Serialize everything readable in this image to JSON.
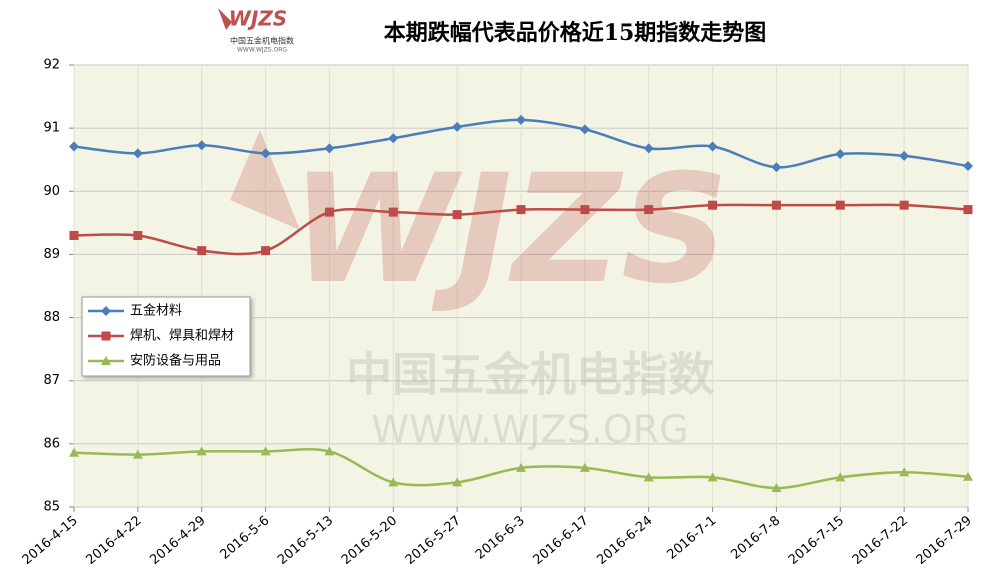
{
  "chart_data": {
    "type": "line",
    "title": "本期跌幅代表品价格近15期指数走势图",
    "logo": {
      "mark": "WJZS",
      "caption": "中国五金机电指数",
      "url": "WWW.WJZS.ORG"
    },
    "watermark": {
      "mark": "WJZS",
      "caption": "中国五金机电指数",
      "url": "WWW.WJZS.ORG"
    },
    "categories": [
      "2016-4-15",
      "2016-4-22",
      "2016-4-29",
      "2016-5-6",
      "2016-5-13",
      "2016-5-20",
      "2016-5-27",
      "2016-6-3",
      "2016-6-17",
      "2016-6-24",
      "2016-7-1",
      "2016-7-8",
      "2016-7-15",
      "2016-7-22",
      "2016-7-29"
    ],
    "series": [
      {
        "name": "五金材料",
        "color": "#4a7ebb",
        "marker": "diamond",
        "values": [
          90.71,
          90.6,
          90.73,
          90.6,
          90.68,
          90.84,
          91.02,
          91.13,
          90.98,
          90.68,
          90.71,
          90.38,
          90.59,
          90.56,
          90.4
        ]
      },
      {
        "name": "焊机、焊具和焊材",
        "color": "#be4b48",
        "marker": "square",
        "values": [
          89.3,
          89.3,
          89.06,
          89.06,
          89.67,
          89.67,
          89.63,
          89.71,
          89.71,
          89.71,
          89.78,
          89.78,
          89.78,
          89.78,
          89.71
        ]
      },
      {
        "name": "安防设备与用品",
        "color": "#98b954",
        "marker": "triangle",
        "values": [
          85.86,
          85.83,
          85.88,
          85.88,
          85.88,
          85.39,
          85.39,
          85.62,
          85.62,
          85.47,
          85.47,
          85.3,
          85.47,
          85.55,
          85.48
        ]
      }
    ],
    "ylim": [
      85,
      92
    ],
    "yticks": [
      85,
      86,
      87,
      88,
      89,
      90,
      91,
      92
    ],
    "grid": true,
    "legend": "left"
  }
}
